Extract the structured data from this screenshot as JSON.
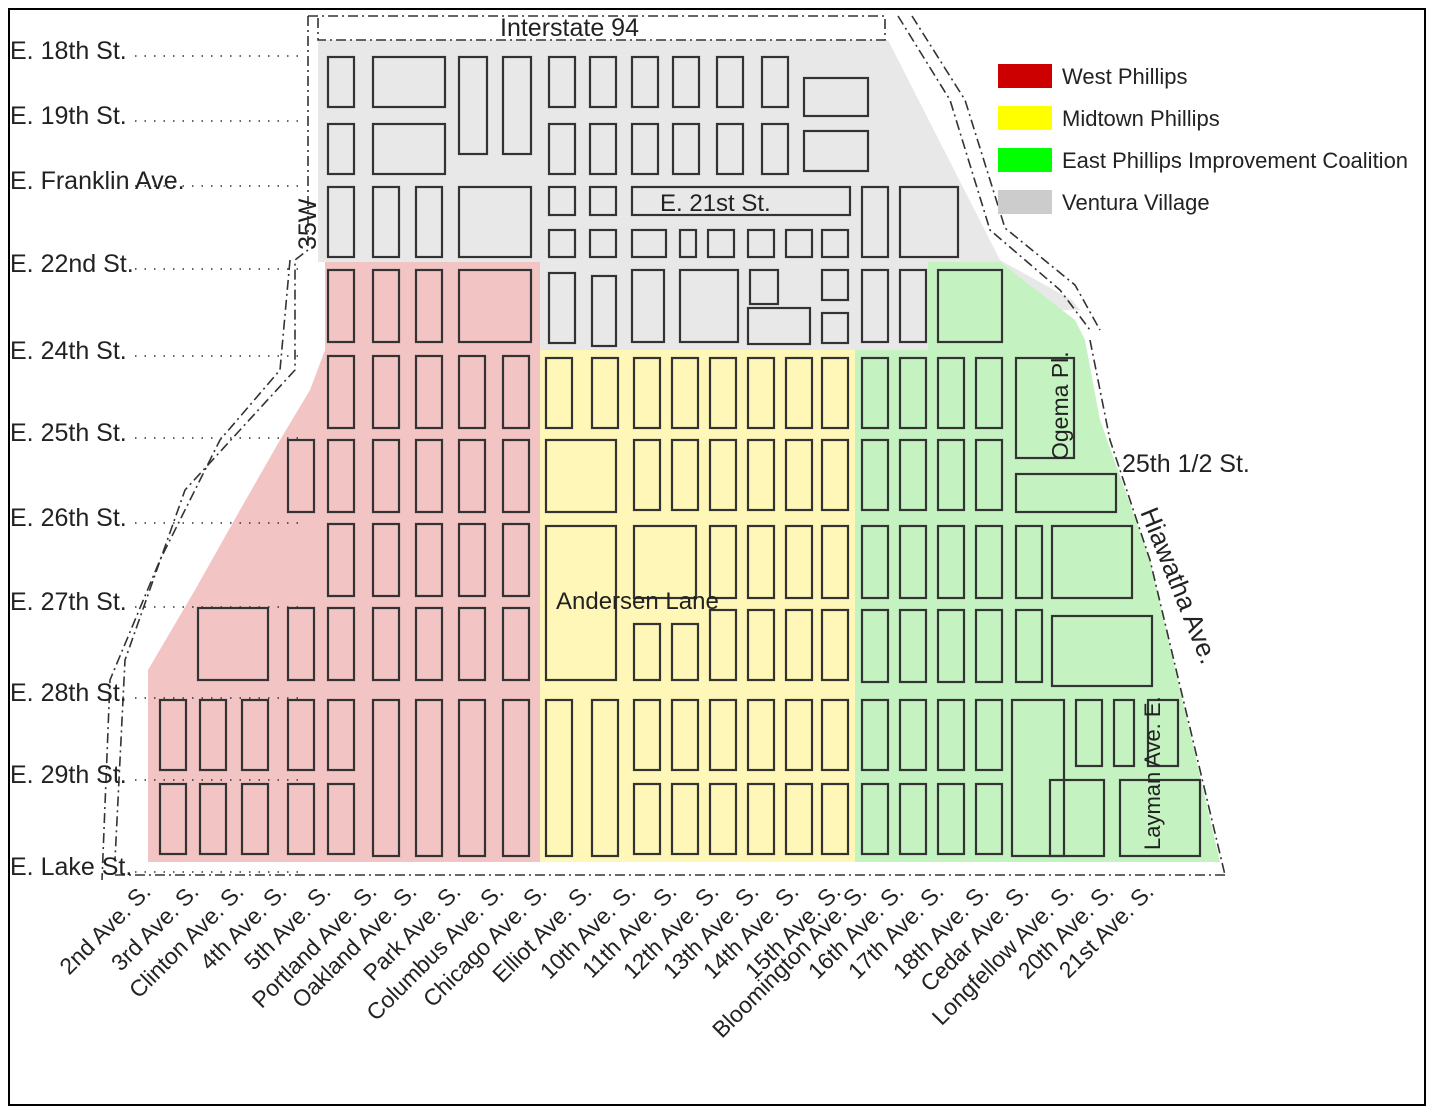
{
  "legend": [
    {
      "label": "West Phillips",
      "color": "#cc0000"
    },
    {
      "label": "Midtown Phillips",
      "color": "#ffff00"
    },
    {
      "label": "East Phillips Improvement Coalition",
      "color": "#00ff00"
    },
    {
      "label": "Ventura Village",
      "color": "#cccccc"
    }
  ],
  "region_fill": {
    "west": "#f2c4c4",
    "midtown": "#fff7b8",
    "east": "#c4f2c0",
    "ventura": "#e8e8e8"
  },
  "streets": [
    "E. 18th St.",
    "E. 19th St.",
    "E. Franklin Ave.",
    "E. 22nd St.",
    "E. 24th St.",
    "E. 25th St.",
    "E. 26th St.",
    "E. 27th St.",
    "E. 28th St.",
    "E. 29th St.",
    "E. Lake St."
  ],
  "avenues": [
    "2nd Ave. S.",
    "3rd Ave. S.",
    "Clinton Ave. S.",
    "4th Ave. S.",
    "5th Ave. S.",
    "Portland Ave. S.",
    "Oakland Ave. S.",
    "Park Ave. S.",
    "Columbus Ave. S.",
    "Chicago Ave. S.",
    "Elliot Ave. S.",
    "10th Ave. S.",
    "11th Ave. S.",
    "12th Ave. S.",
    "13th Ave. S.",
    "14th Ave. S.",
    "15th Ave. S.",
    "Bloomington Ave. S.",
    "16th Ave. S.",
    "17th Ave. S.",
    "18th Ave. S.",
    "Cedar Ave. S.",
    "Longfellow Ave. S.",
    "20th Ave. S.",
    "21st Ave. S."
  ],
  "labels": {
    "interstate": "Interstate 94",
    "highway35w": "35W",
    "e21st": "E. 21st St.",
    "andersen": "Andersen Lane",
    "ogema": "Ogema Pl.",
    "st25half": "25th 1/2 St.",
    "hiawatha": "Hiawatha Ave.",
    "layman": "Layman Ave. E."
  }
}
